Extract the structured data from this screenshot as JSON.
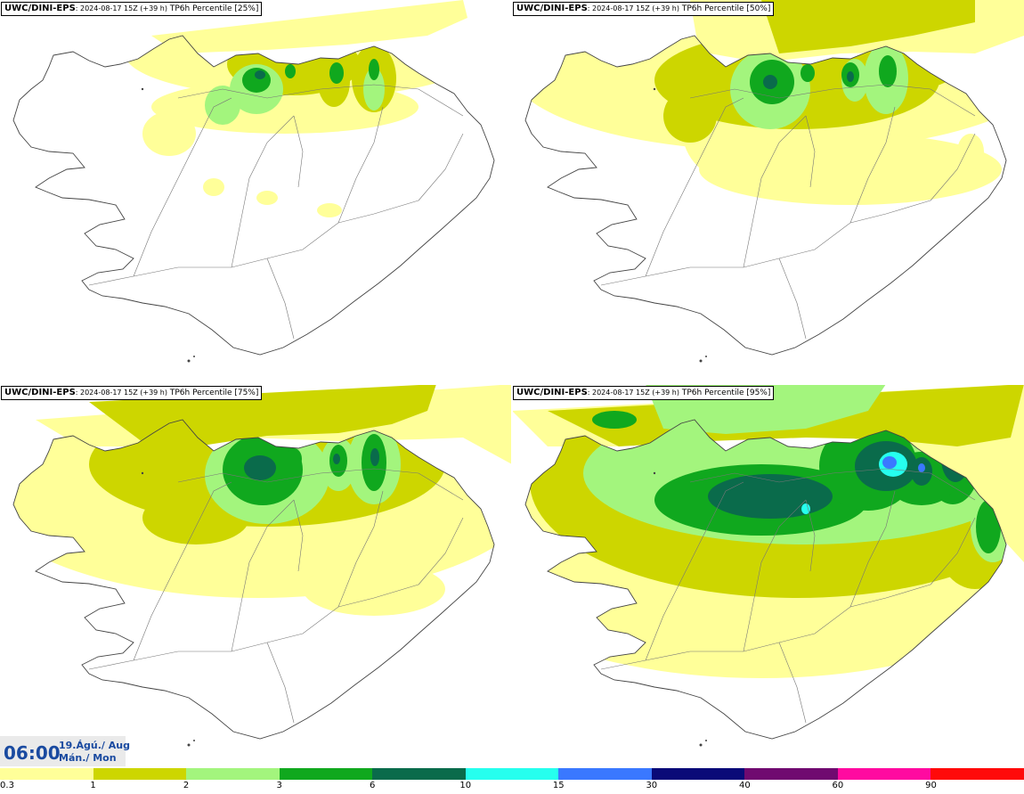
{
  "panels": [
    {
      "model": "UWC/DINI-EPS",
      "meta": ": 2024-08-17 15Z (+39 h)",
      "product": "TP6h Percentile [25%]",
      "intensity": 0
    },
    {
      "model": "UWC/DINI-EPS",
      "meta": ": 2024-08-17 15Z (+39 h)",
      "product": "TP6h Percentile [50%]",
      "intensity": 1
    },
    {
      "model": "UWC/DINI-EPS",
      "meta": ": 2024-08-17 15Z (+39 h)",
      "product": "TP6h Percentile [75%]",
      "intensity": 2
    },
    {
      "model": "UWC/DINI-EPS",
      "meta": ": 2024-08-17 15Z (+39 h)",
      "product": "TP6h Percentile [95%]",
      "intensity": 3
    }
  ],
  "time": {
    "clock": "06:00",
    "date_line1": "19.Ágú./ Aug",
    "date_line2": "Mán./ Mon"
  },
  "legend": {
    "labels": [
      "0.3",
      "1",
      "2",
      "3",
      "6",
      "10",
      "15",
      "30",
      "40",
      "60",
      "90"
    ],
    "colors": [
      "#ffff99",
      "#cdd600",
      "#a3f57d",
      "#10a81e",
      "#0a6b4b",
      "#26ffee",
      "#3a78ff",
      "#0a0a78",
      "#700a70",
      "#ff0aa0",
      "#ff0a0a"
    ]
  }
}
